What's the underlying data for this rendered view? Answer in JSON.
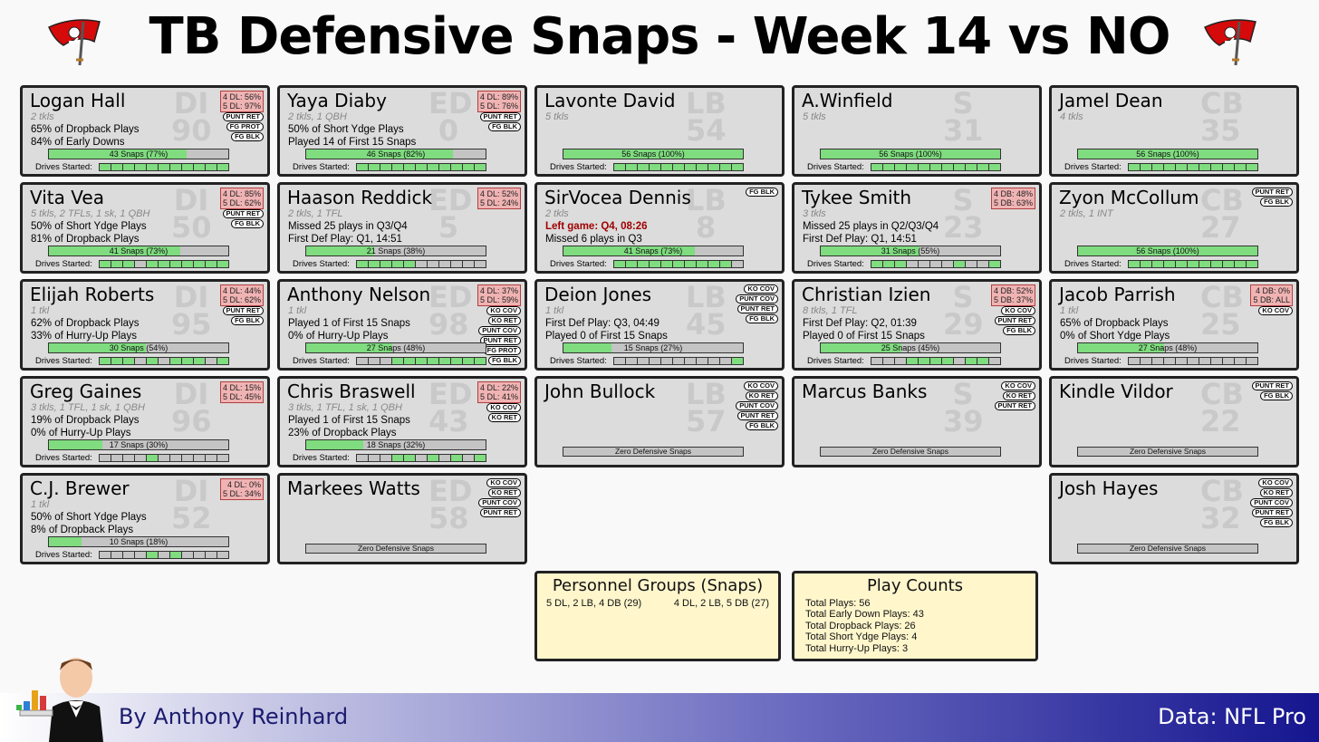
{
  "title": "TB Defensive Snaps - Week 14 vs NO",
  "byline": "By Anthony Reinhard",
  "data_source": "Data: NFL Pro",
  "colors": {
    "accent_red": "#d50a0a",
    "snap_green": "#7fdc7f",
    "format_pink": "#f0b3b3",
    "footer_navy": "#15158f"
  },
  "drives_label": "Drives Started:",
  "zero_label": "Zero Defensive Snaps",
  "personnel": {
    "title": "Personnel Groups (Snaps)",
    "groups": [
      "5 DL, 2 LB, 4 DB (29)",
      "4 DL, 2 LB, 5 DB (27)"
    ]
  },
  "play_counts": {
    "title": "Play Counts",
    "items": [
      "Total Plays: 56",
      "Total Early Down Plays: 43",
      "Total Dropback Plays: 26",
      "Total Short Ydge Plays: 4",
      "Total Hurry-Up Plays: 3"
    ]
  },
  "players": [
    {
      "col": 0,
      "row": 0,
      "name": "Logan Hall",
      "pos": "DI",
      "num": "90",
      "stats": "2 tkls",
      "lines": [
        "65% of Dropback Plays",
        "84% of Early Downs"
      ],
      "fmt": [
        "4 DL: 56%",
        "5 DL: 97%"
      ],
      "badges": [
        "PUNT RET",
        "FG PROT",
        "FG BLK"
      ],
      "snaps": "43 Snaps (77%)",
      "pct": 0.77,
      "drives": [
        1,
        1,
        1,
        1,
        1,
        1,
        1,
        1,
        1,
        1,
        1
      ]
    },
    {
      "col": 0,
      "row": 1,
      "name": "Vita Vea",
      "pos": "DI",
      "num": "50",
      "stats": "5 tkls, 2 TFLs, 1 sk, 1 QBH",
      "lines": [
        "50% of Short Ydge Plays",
        "81% of Dropback Plays"
      ],
      "fmt": [
        "4 DL: 85%",
        "5 DL: 62%"
      ],
      "badges": [
        "PUNT RET",
        "FG BLK"
      ],
      "snaps": "41 Snaps (73%)",
      "pct": 0.73,
      "drives": [
        1,
        1,
        1,
        0,
        1,
        1,
        1,
        1,
        1,
        1,
        1
      ]
    },
    {
      "col": 0,
      "row": 2,
      "name": "Elijah Roberts",
      "pos": "DI",
      "num": "95",
      "stats": "1 tkl",
      "lines": [
        "62% of Dropback Plays",
        "33% of Hurry-Up Plays"
      ],
      "fmt": [
        "4 DL: 44%",
        "5 DL: 62%"
      ],
      "badges": [
        "PUNT RET",
        "FG BLK"
      ],
      "snaps": "30 Snaps (54%)",
      "pct": 0.54,
      "drives": [
        1,
        1,
        1,
        0,
        1,
        0,
        1,
        1,
        1,
        0,
        1
      ]
    },
    {
      "col": 0,
      "row": 3,
      "name": "Greg Gaines",
      "pos": "DI",
      "num": "96",
      "stats": "3 tkls, 1 TFL, 1 sk, 1 QBH",
      "lines": [
        "19% of Dropback Plays",
        "0% of Hurry-Up Plays"
      ],
      "fmt": [
        "4 DL: 15%",
        "5 DL: 45%"
      ],
      "badges": [],
      "snaps": "17 Snaps (30%)",
      "pct": 0.3,
      "drives": [
        0,
        0,
        0,
        0,
        1,
        0,
        0,
        0,
        0,
        0,
        0
      ]
    },
    {
      "col": 0,
      "row": 4,
      "name": "C.J. Brewer",
      "pos": "DI",
      "num": "52",
      "stats": "1 tkl",
      "lines": [
        "50% of Short Ydge Plays",
        "8% of Dropback Plays"
      ],
      "fmt": [
        "4 DL: 0%",
        "5 DL: 34%"
      ],
      "badges": [],
      "snaps": "10 Snaps (18%)",
      "pct": 0.18,
      "drives": [
        0,
        0,
        0,
        0,
        1,
        0,
        1,
        0,
        0,
        0,
        0
      ]
    },
    {
      "col": 1,
      "row": 0,
      "name": "Yaya Diaby",
      "pos": "ED",
      "num": "0",
      "stats": "2 tkls, 1 QBH",
      "lines": [
        "50% of Short Ydge Plays",
        "Played 14 of First 15 Snaps"
      ],
      "fmt": [
        "4 DL: 89%",
        "5 DL: 76%"
      ],
      "badges": [
        "PUNT RET",
        "FG BLK"
      ],
      "snaps": "46 Snaps (82%)",
      "pct": 0.82,
      "drives": [
        1,
        1,
        1,
        1,
        1,
        1,
        1,
        1,
        1,
        1,
        1
      ]
    },
    {
      "col": 1,
      "row": 1,
      "name": "Haason Reddick",
      "pos": "ED",
      "num": "5",
      "stats": "2 tkls, 1 TFL",
      "lines": [
        "Missed 25 plays in Q3/Q4",
        "First Def Play: Q1, 14:51"
      ],
      "fmt": [
        "4 DL: 52%",
        "5 DL: 24%"
      ],
      "badges": [],
      "snaps": "21 Snaps (38%)",
      "pct": 0.38,
      "drives": [
        1,
        1,
        1,
        1,
        1,
        0,
        0,
        0,
        0,
        0,
        0
      ]
    },
    {
      "col": 1,
      "row": 2,
      "name": "Anthony Nelson",
      "pos": "ED",
      "num": "98",
      "stats": "1 tkl",
      "lines": [
        "Played 1 of First 15 Snaps",
        "0% of Hurry-Up Plays"
      ],
      "fmt": [
        "4 DL: 37%",
        "5 DL: 59%"
      ],
      "badges": [
        "KO COV",
        "KO RET",
        "PUNT COV",
        "PUNT RET",
        "FG PROT",
        "FG BLK"
      ],
      "snaps": "27 Snaps (48%)",
      "pct": 0.48,
      "drives": [
        0,
        0,
        0,
        1,
        1,
        1,
        1,
        1,
        1,
        1,
        1
      ]
    },
    {
      "col": 1,
      "row": 3,
      "name": "Chris Braswell",
      "pos": "ED",
      "num": "43",
      "stats": "3 tkls, 1 TFL, 1 sk, 1 QBH",
      "lines": [
        "Played 1 of First 15 Snaps",
        "23% of Dropback Plays"
      ],
      "fmt": [
        "4 DL: 22%",
        "5 DL: 41%"
      ],
      "badges": [
        "KO COV",
        "KO RET"
      ],
      "snaps": "18 Snaps (32%)",
      "pct": 0.32,
      "drives": [
        0,
        0,
        0,
        1,
        1,
        0,
        1,
        0,
        1,
        0,
        1
      ]
    },
    {
      "col": 1,
      "row": 4,
      "name": "Markees Watts",
      "pos": "ED",
      "num": "58",
      "stats": "",
      "lines": [],
      "fmt": [],
      "badges": [
        "KO COV",
        "KO RET",
        "PUNT COV",
        "PUNT RET"
      ],
      "snaps": "",
      "pct": 0,
      "drives": []
    },
    {
      "col": 2,
      "row": 0,
      "name": "Lavonte David",
      "pos": "LB",
      "num": "54",
      "stats": "5 tkls",
      "lines": [],
      "fmt": [],
      "badges": [],
      "snaps": "56 Snaps (100%)",
      "pct": 1.0,
      "drives": [
        1,
        1,
        1,
        1,
        1,
        1,
        1,
        1,
        1,
        1,
        1
      ]
    },
    {
      "col": 2,
      "row": 1,
      "name": "SirVocea Dennis",
      "pos": "LB",
      "num": "8",
      "stats": "2 tkls",
      "lines": [
        "Left game: Q4, 08:26",
        "Missed 6 plays in Q3"
      ],
      "red_line": 0,
      "fmt": [],
      "badges": [
        "FG BLK"
      ],
      "snaps": "41 Snaps (73%)",
      "pct": 0.73,
      "drives": [
        1,
        1,
        1,
        1,
        1,
        1,
        1,
        1,
        1,
        1,
        0
      ]
    },
    {
      "col": 2,
      "row": 2,
      "name": "Deion Jones",
      "pos": "LB",
      "num": "45",
      "stats": "1 tkl",
      "lines": [
        "First Def Play: Q3, 04:49",
        "Played 0 of First 15 Snaps"
      ],
      "fmt": [],
      "badges": [
        "KO COV",
        "PUNT COV",
        "PUNT RET",
        "FG BLK"
      ],
      "snaps": "15 Snaps (27%)",
      "pct": 0.27,
      "drives": [
        0,
        0,
        0,
        0,
        0,
        0,
        0,
        0,
        0,
        0,
        1
      ]
    },
    {
      "col": 2,
      "row": 3,
      "name": "John Bullock",
      "pos": "LB",
      "num": "57",
      "stats": "",
      "lines": [],
      "fmt": [],
      "badges": [
        "KO COV",
        "KO RET",
        "PUNT COV",
        "PUNT RET",
        "FG BLK"
      ],
      "snaps": "",
      "pct": 0,
      "drives": []
    },
    {
      "col": 3,
      "row": 0,
      "name": "A.Winfield",
      "pos": "S",
      "num": "31",
      "stats": "5 tkls",
      "lines": [],
      "fmt": [],
      "badges": [],
      "snaps": "56 Snaps (100%)",
      "pct": 1.0,
      "drives": [
        1,
        1,
        1,
        1,
        1,
        1,
        1,
        1,
        1,
        1,
        1
      ]
    },
    {
      "col": 3,
      "row": 1,
      "name": "Tykee Smith",
      "pos": "S",
      "num": "23",
      "stats": "3 tkls",
      "lines": [
        "Missed 25 plays in Q2/Q3/Q4",
        "First Def Play: Q1, 14:51"
      ],
      "fmt": [
        "4 DB: 48%",
        "5 DB: 63%"
      ],
      "badges": [],
      "snaps": "31 Snaps (55%)",
      "pct": 0.55,
      "drives": [
        1,
        1,
        1,
        0,
        0,
        0,
        0,
        1,
        0,
        0,
        1
      ]
    },
    {
      "col": 3,
      "row": 2,
      "name": "Christian Izien",
      "pos": "S",
      "num": "29",
      "stats": "8 tkls, 1 TFL",
      "lines": [
        "First Def Play: Q2, 01:39",
        "Played 0 of First 15 Snaps"
      ],
      "fmt": [
        "4 DB: 52%",
        "5 DB: 37%"
      ],
      "badges": [
        "KO COV",
        "PUNT RET",
        "FG BLK"
      ],
      "snaps": "25 Snaps (45%)",
      "pct": 0.45,
      "drives": [
        0,
        0,
        0,
        1,
        1,
        1,
        1,
        0,
        1,
        1,
        0
      ]
    },
    {
      "col": 3,
      "row": 3,
      "name": "Marcus Banks",
      "pos": "S",
      "num": "39",
      "stats": "",
      "lines": [],
      "fmt": [],
      "badges": [
        "KO COV",
        "KO RET",
        "PUNT RET"
      ],
      "snaps": "",
      "pct": 0,
      "drives": []
    },
    {
      "col": 4,
      "row": 0,
      "name": "Jamel Dean",
      "pos": "CB",
      "num": "35",
      "stats": "4 tkls",
      "lines": [],
      "fmt": [],
      "badges": [],
      "snaps": "56 Snaps (100%)",
      "pct": 1.0,
      "drives": [
        1,
        1,
        1,
        1,
        1,
        1,
        1,
        1,
        1,
        1,
        1
      ]
    },
    {
      "col": 4,
      "row": 1,
      "name": "Zyon McCollum",
      "pos": "CB",
      "num": "27",
      "stats": "2 tkls, 1 INT",
      "lines": [],
      "fmt": [],
      "badges": [
        "PUNT RET",
        "FG BLK"
      ],
      "snaps": "56 Snaps (100%)",
      "pct": 1.0,
      "drives": [
        1,
        1,
        1,
        1,
        1,
        1,
        1,
        1,
        1,
        1,
        1
      ]
    },
    {
      "col": 4,
      "row": 2,
      "name": "Jacob Parrish",
      "pos": "CB",
      "num": "25",
      "stats": "1 tkl",
      "lines": [
        "65% of Dropback Plays",
        "0% of Short Ydge Plays"
      ],
      "fmt": [
        "4 DB: 0%",
        "5 DB: ALL"
      ],
      "badges": [
        "KO COV"
      ],
      "snaps": "27 Snaps (48%)",
      "pct": 0.48,
      "drives": [
        0,
        0,
        0,
        0,
        0,
        0,
        0,
        0,
        0,
        0,
        0
      ]
    },
    {
      "col": 4,
      "row": 3,
      "name": "Kindle Vildor",
      "pos": "CB",
      "num": "22",
      "stats": "",
      "lines": [],
      "fmt": [],
      "badges": [
        "PUNT RET",
        "FG BLK"
      ],
      "snaps": "",
      "pct": 0,
      "drives": []
    },
    {
      "col": 4,
      "row": 4,
      "name": "Josh Hayes",
      "pos": "CB",
      "num": "32",
      "stats": "",
      "lines": [],
      "fmt": [],
      "badges": [
        "KO COV",
        "KO RET",
        "PUNT COV",
        "PUNT RET",
        "FG BLK"
      ],
      "snaps": "",
      "pct": 0,
      "drives": []
    }
  ]
}
